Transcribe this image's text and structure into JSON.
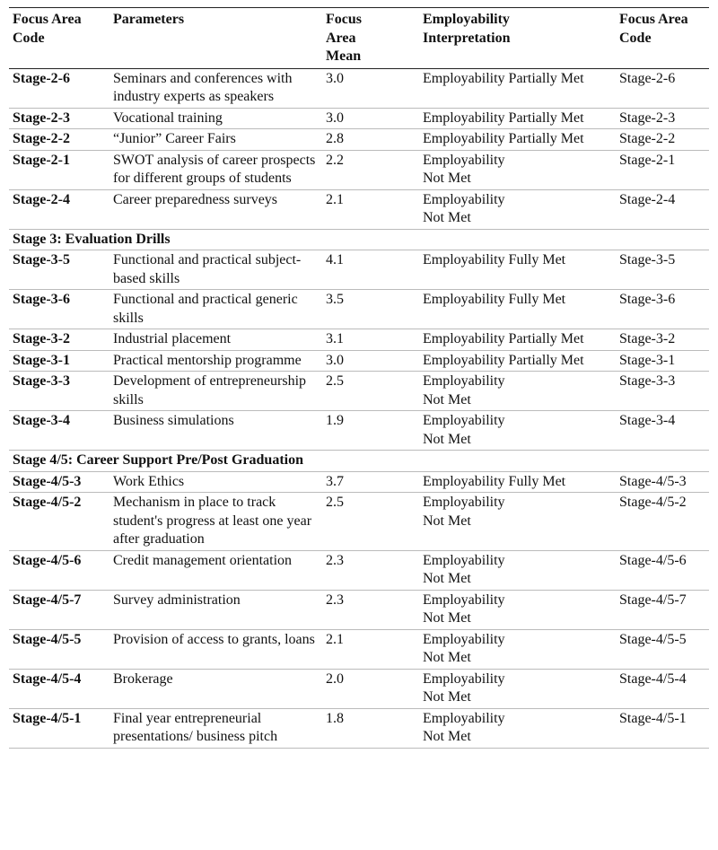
{
  "table": {
    "header": [
      "Focus Area Code",
      "Parameters",
      "Focus\nArea\nMean",
      "Employability\nInterpretation",
      "Focus Area Code"
    ],
    "rows": [
      [
        "Stage-2-6",
        "Seminars and conferences with industry experts as speakers",
        "3.0",
        "Employability Partially Met",
        "Stage-2-6"
      ],
      [
        "Stage-2-3",
        "Vocational training",
        "3.0",
        "Employability Partially Met",
        "Stage-2-3"
      ],
      [
        "Stage-2-2",
        "“Junior” Career Fairs",
        "2.8",
        "Employability Partially Met",
        "Stage-2-2"
      ],
      [
        "Stage-2-1",
        "SWOT analysis of career prospects for different groups of students",
        "2.2",
        "Employability\nNot Met",
        "Stage-2-1"
      ],
      [
        "Stage-2-4",
        "Career preparedness surveys",
        "2.1",
        "Employability\nNot Met",
        "Stage-2-4"
      ],
      {
        "section": "Stage 3: Evaluation Drills"
      },
      [
        "Stage-3-5",
        "Functional and practical subject-based skills",
        "4.1",
        "Employability Fully Met",
        "Stage-3-5"
      ],
      [
        "Stage-3-6",
        "Functional and practical generic skills",
        "3.5",
        "Employability Fully Met",
        "Stage-3-6"
      ],
      [
        "Stage-3-2",
        "Industrial placement",
        "3.1",
        "Employability Partially Met",
        "Stage-3-2"
      ],
      [
        "Stage-3-1",
        "Practical mentorship programme",
        "3.0",
        "Employability Partially Met",
        "Stage-3-1"
      ],
      [
        "Stage-3-3",
        "Development of entrepreneurship skills",
        "2.5",
        "Employability\nNot Met",
        "Stage-3-3"
      ],
      [
        "Stage-3-4",
        "Business simulations",
        "1.9",
        "Employability\nNot Met",
        "Stage-3-4"
      ],
      {
        "section": "Stage 4/5: Career Support Pre/Post Graduation"
      },
      [
        "Stage-4/5-3",
        "Work Ethics",
        "3.7",
        "Employability Fully Met",
        "Stage-4/5-3"
      ],
      [
        "Stage-4/5-2",
        "Mechanism in place to track student's progress at least one year after graduation",
        "2.5",
        "Employability\nNot Met",
        "Stage-4/5-2"
      ],
      [
        "Stage-4/5-6",
        "Credit management orientation",
        "2.3",
        "Employability\nNot Met",
        "Stage-4/5-6"
      ],
      [
        "Stage-4/5-7",
        "Survey administration",
        "2.3",
        "Employability\nNot Met",
        "Stage-4/5-7"
      ],
      [
        "Stage-4/5-5",
        "Provision of access to grants, loans",
        "2.1",
        "Employability\nNot Met",
        "Stage-4/5-5"
      ],
      [
        "Stage-4/5-4",
        "Brokerage",
        "2.0",
        "Employability\nNot Met",
        "Stage-4/5-4"
      ],
      [
        "Stage-4/5-1",
        "Final year entrepreneurial presentations/ business pitch",
        "1.8",
        "Employability\nNot Met",
        "Stage-4/5-1"
      ]
    ]
  }
}
